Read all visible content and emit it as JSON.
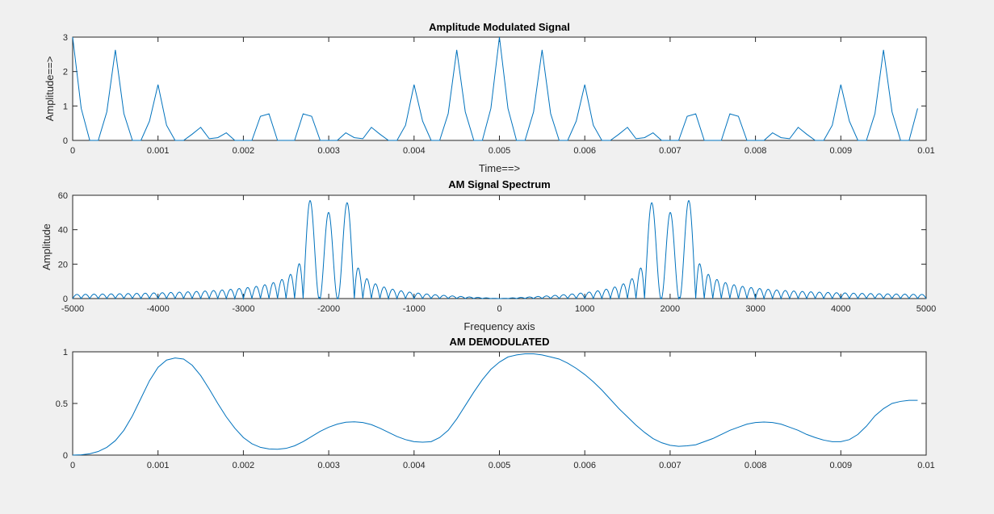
{
  "chart_data": [
    {
      "type": "line",
      "title": "Amplitude Modulated Signal",
      "xlabel": "Time==>",
      "ylabel": "Amplitude==>",
      "xlim": [
        0,
        0.01
      ],
      "ylim": [
        0,
        3
      ],
      "xticks": [
        0,
        0.001,
        0.002,
        0.003,
        0.004,
        0.005,
        0.006,
        0.007,
        0.008,
        0.009,
        0.01
      ],
      "xtick_labels": [
        "0",
        "0.001",
        "0.002",
        "0.003",
        "0.004",
        "0.005",
        "0.006",
        "0.007",
        "0.008",
        "0.009",
        "0.01"
      ],
      "yticks": [
        0,
        1,
        2,
        3
      ],
      "ytick_labels": [
        "0",
        "1",
        "2",
        "3"
      ],
      "grid": false,
      "line_color": "#0072bd",
      "series": [
        {
          "x": [
            0,
            0.0001,
            0.0002,
            0.0003,
            0.0004,
            0.0005,
            0.0006,
            0.0007,
            0.0008,
            0.0009,
            0.001,
            0.0011,
            0.0012,
            0.0013,
            0.0014,
            0.0015,
            0.0016,
            0.0017,
            0.0018,
            0.0019,
            0.002,
            0.0021,
            0.0022,
            0.0023,
            0.0024,
            0.0025,
            0.0026,
            0.0027,
            0.0028,
            0.0029,
            0.003,
            0.0031,
            0.0032,
            0.0033,
            0.0034,
            0.0035,
            0.0036,
            0.0037,
            0.0038,
            0.0039,
            0.004,
            0.0041,
            0.0042,
            0.0043,
            0.0044,
            0.0045,
            0.0046,
            0.0047,
            0.0048,
            0.0049,
            0.005,
            0.0051,
            0.0052,
            0.0053,
            0.0054,
            0.0055,
            0.0056,
            0.0057,
            0.0058,
            0.0059,
            0.006,
            0.0061,
            0.0062,
            0.0063,
            0.0064,
            0.0065,
            0.0066,
            0.0067,
            0.0068,
            0.0069,
            0.007,
            0.0071,
            0.0072,
            0.0073,
            0.0074,
            0.0075,
            0.0076,
            0.0077,
            0.0078,
            0.0079,
            0.008,
            0.0081,
            0.0082,
            0.0083,
            0.0084,
            0.0085,
            0.0086,
            0.0087,
            0.0088,
            0.0089,
            0.009,
            0.0091,
            0.0092,
            0.0093,
            0.0094,
            0.0095,
            0.0096,
            0.0097,
            0.0098,
            0.0099
          ],
          "y": [
            3.0,
            0.93,
            0.0,
            0.0,
            0.83,
            2.63,
            0.78,
            0.0,
            0.0,
            0.56,
            1.62,
            0.44,
            0.0,
            0.0,
            0.18,
            0.38,
            0.05,
            0.08,
            0.22,
            0.0,
            0.0,
            0.0,
            0.7,
            0.77,
            0.0,
            0.0,
            0.0,
            0.77,
            0.7,
            0.0,
            0.0,
            0.0,
            0.22,
            0.08,
            0.05,
            0.38,
            0.18,
            0.0,
            0.0,
            0.44,
            1.62,
            0.56,
            0.0,
            0.0,
            0.78,
            2.63,
            0.83,
            0.0,
            0.0,
            0.93,
            3.0,
            0.93,
            0.0,
            0.0,
            0.83,
            2.63,
            0.78,
            0.0,
            0.0,
            0.56,
            1.62,
            0.44,
            0.0,
            0.0,
            0.18,
            0.38,
            0.05,
            0.08,
            0.22,
            0.0,
            0.0,
            0.0,
            0.7,
            0.77,
            0.0,
            0.0,
            0.0,
            0.77,
            0.7,
            0.0,
            0.0,
            0.0,
            0.22,
            0.08,
            0.05,
            0.38,
            0.18,
            0.0,
            0.0,
            0.44,
            1.62,
            0.56,
            0.0,
            0.0,
            0.78,
            2.63,
            0.83,
            0.0,
            0.0,
            0.93
          ]
        }
      ]
    },
    {
      "type": "line",
      "title": "AM Signal Spectrum",
      "xlabel": "Frequency axis",
      "ylabel": "Amplitude",
      "xlim": [
        -5000,
        5000
      ],
      "ylim": [
        0,
        60
      ],
      "xticks": [
        -5000,
        -4000,
        -3000,
        -2000,
        -1000,
        0,
        1000,
        2000,
        3000,
        4000,
        5000
      ],
      "xtick_labels": [
        "-5000",
        "-4000",
        "-3000",
        "-2000",
        "-1000",
        "0",
        "1000",
        "2000",
        "3000",
        "4000",
        "5000"
      ],
      "yticks": [
        0,
        20,
        40,
        60
      ],
      "ytick_labels": [
        "0",
        "20",
        "40",
        "60"
      ],
      "grid": false,
      "line_color": "#0072bd",
      "series": [
        {
          "description_of_shape": "|sinc| lobes spaced 100 Hz; main peaks",
          "peaks": [
            {
              "x": -2200,
              "y": 53
            },
            {
              "x": -2000,
              "y": 50
            },
            {
              "x": -1800,
              "y": 53
            },
            {
              "x": 1800,
              "y": 53
            },
            {
              "x": 2000,
              "y": 50
            },
            {
              "x": 2200,
              "y": 53
            }
          ]
        }
      ]
    },
    {
      "type": "line",
      "title": "AM DEMODULATED",
      "xlabel": "",
      "ylabel": "",
      "xlim": [
        0,
        0.01
      ],
      "ylim": [
        0,
        1
      ],
      "xticks": [
        0,
        0.001,
        0.002,
        0.003,
        0.004,
        0.005,
        0.006,
        0.007,
        0.008,
        0.009,
        0.01
      ],
      "xtick_labels": [
        "0",
        "0.001",
        "0.002",
        "0.003",
        "0.004",
        "0.005",
        "0.006",
        "0.007",
        "0.008",
        "0.009",
        "0.01"
      ],
      "yticks": [
        0,
        0.5,
        1
      ],
      "ytick_labels": [
        "0",
        "0.5",
        "1"
      ],
      "grid": false,
      "line_color": "#0072bd",
      "series": [
        {
          "x": [
            0,
            0.0001,
            0.0002,
            0.0003,
            0.0004,
            0.0005,
            0.0006,
            0.0007,
            0.0008,
            0.0009,
            0.001,
            0.0011,
            0.0012,
            0.0013,
            0.0014,
            0.0015,
            0.0016,
            0.0017,
            0.0018,
            0.0019,
            0.002,
            0.0021,
            0.0022,
            0.0023,
            0.0024,
            0.0025,
            0.0026,
            0.0027,
            0.0028,
            0.0029,
            0.003,
            0.0031,
            0.0032,
            0.0033,
            0.0034,
            0.0035,
            0.0036,
            0.0037,
            0.0038,
            0.0039,
            0.004,
            0.0041,
            0.0042,
            0.0043,
            0.0044,
            0.0045,
            0.0046,
            0.0047,
            0.0048,
            0.0049,
            0.005,
            0.0051,
            0.0052,
            0.0053,
            0.0054,
            0.0055,
            0.0056,
            0.0057,
            0.0058,
            0.0059,
            0.006,
            0.0061,
            0.0062,
            0.0063,
            0.0064,
            0.0065,
            0.0066,
            0.0067,
            0.0068,
            0.0069,
            0.007,
            0.0071,
            0.0072,
            0.0073,
            0.0074,
            0.0075,
            0.0076,
            0.0077,
            0.0078,
            0.0079,
            0.008,
            0.0081,
            0.0082,
            0.0083,
            0.0084,
            0.0085,
            0.0086,
            0.0087,
            0.0088,
            0.0089,
            0.009,
            0.0091,
            0.0092,
            0.0093,
            0.0094,
            0.0095,
            0.0096,
            0.0097,
            0.0098,
            0.0099
          ],
          "y": [
            0.0,
            0.003,
            0.013,
            0.035,
            0.075,
            0.14,
            0.24,
            0.38,
            0.55,
            0.72,
            0.85,
            0.92,
            0.94,
            0.93,
            0.87,
            0.77,
            0.64,
            0.5,
            0.37,
            0.26,
            0.17,
            0.11,
            0.075,
            0.06,
            0.057,
            0.065,
            0.09,
            0.13,
            0.18,
            0.23,
            0.27,
            0.3,
            0.318,
            0.322,
            0.315,
            0.295,
            0.26,
            0.22,
            0.18,
            0.15,
            0.13,
            0.125,
            0.13,
            0.17,
            0.24,
            0.35,
            0.48,
            0.61,
            0.73,
            0.83,
            0.9,
            0.95,
            0.97,
            0.98,
            0.98,
            0.97,
            0.95,
            0.93,
            0.89,
            0.84,
            0.78,
            0.71,
            0.63,
            0.54,
            0.45,
            0.37,
            0.29,
            0.22,
            0.16,
            0.12,
            0.095,
            0.085,
            0.09,
            0.1,
            0.13,
            0.16,
            0.2,
            0.24,
            0.27,
            0.3,
            0.315,
            0.32,
            0.315,
            0.3,
            0.27,
            0.24,
            0.2,
            0.17,
            0.145,
            0.13,
            0.13,
            0.15,
            0.2,
            0.28,
            0.38,
            0.45,
            0.5,
            0.52,
            0.53,
            0.53
          ]
        }
      ]
    }
  ]
}
